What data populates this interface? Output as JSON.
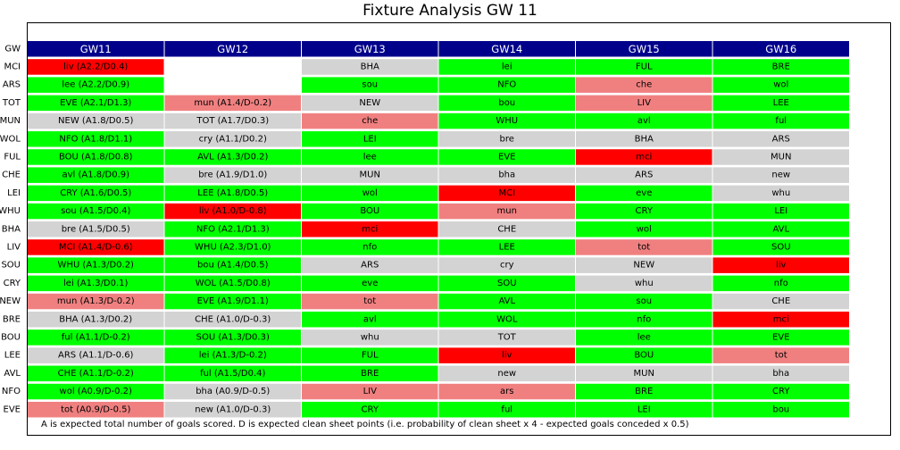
{
  "chart_data": {
    "type": "table",
    "title": "Fixture Analysis GW 11",
    "row_header_label": "GW",
    "columns": [
      "GW11",
      "GW12",
      "GW13",
      "GW14",
      "GW15",
      "GW16"
    ],
    "colors": {
      "header": "#00008b",
      "green": "#00ff00",
      "grey": "#d3d3d3",
      "pink": "#f08080",
      "red": "#ff0000",
      "empty": "#ffffff"
    },
    "rows": [
      {
        "team": "MCI",
        "cells": [
          [
            "liv (A2.2/D0.4)",
            "red"
          ],
          [
            "",
            "empty"
          ],
          [
            "BHA",
            "grey"
          ],
          [
            "lei",
            "green"
          ],
          [
            "FUL",
            "green"
          ],
          [
            "BRE",
            "green"
          ]
        ]
      },
      {
        "team": "ARS",
        "cells": [
          [
            "lee (A2.2/D0.9)",
            "green"
          ],
          [
            "",
            "empty"
          ],
          [
            "sou",
            "green"
          ],
          [
            "NFO",
            "green"
          ],
          [
            "che",
            "pink"
          ],
          [
            "wol",
            "green"
          ]
        ]
      },
      {
        "team": "TOT",
        "cells": [
          [
            "EVE (A2.1/D1.3)",
            "green"
          ],
          [
            "mun (A1.4/D-0.2)",
            "pink"
          ],
          [
            "NEW",
            "grey"
          ],
          [
            "bou",
            "green"
          ],
          [
            "LIV",
            "pink"
          ],
          [
            "LEE",
            "green"
          ]
        ]
      },
      {
        "team": "MUN",
        "cells": [
          [
            "NEW (A1.8/D0.5)",
            "grey"
          ],
          [
            "TOT (A1.7/D0.3)",
            "grey"
          ],
          [
            "che",
            "pink"
          ],
          [
            "WHU",
            "green"
          ],
          [
            "avl",
            "green"
          ],
          [
            "ful",
            "green"
          ]
        ]
      },
      {
        "team": "WOL",
        "cells": [
          [
            "NFO (A1.8/D1.1)",
            "green"
          ],
          [
            "cry (A1.1/D0.2)",
            "grey"
          ],
          [
            "LEI",
            "green"
          ],
          [
            "bre",
            "grey"
          ],
          [
            "BHA",
            "grey"
          ],
          [
            "ARS",
            "grey"
          ]
        ]
      },
      {
        "team": "FUL",
        "cells": [
          [
            "BOU (A1.8/D0.8)",
            "green"
          ],
          [
            "AVL (A1.3/D0.2)",
            "green"
          ],
          [
            "lee",
            "green"
          ],
          [
            "EVE",
            "green"
          ],
          [
            "mci",
            "red"
          ],
          [
            "MUN",
            "grey"
          ]
        ]
      },
      {
        "team": "CHE",
        "cells": [
          [
            "avl (A1.8/D0.9)",
            "green"
          ],
          [
            "bre (A1.9/D1.0)",
            "grey"
          ],
          [
            "MUN",
            "grey"
          ],
          [
            "bha",
            "grey"
          ],
          [
            "ARS",
            "grey"
          ],
          [
            "new",
            "grey"
          ]
        ]
      },
      {
        "team": "LEI",
        "cells": [
          [
            "CRY (A1.6/D0.5)",
            "green"
          ],
          [
            "LEE (A1.8/D0.5)",
            "green"
          ],
          [
            "wol",
            "green"
          ],
          [
            "MCI",
            "red"
          ],
          [
            "eve",
            "green"
          ],
          [
            "whu",
            "grey"
          ]
        ]
      },
      {
        "team": "WHU",
        "cells": [
          [
            "sou (A1.5/D0.4)",
            "green"
          ],
          [
            "liv (A1.0/D-0.8)",
            "red"
          ],
          [
            "BOU",
            "green"
          ],
          [
            "mun",
            "pink"
          ],
          [
            "CRY",
            "green"
          ],
          [
            "LEI",
            "green"
          ]
        ]
      },
      {
        "team": "BHA",
        "cells": [
          [
            "bre (A1.5/D0.5)",
            "grey"
          ],
          [
            "NFO (A2.1/D1.3)",
            "green"
          ],
          [
            "mci",
            "red"
          ],
          [
            "CHE",
            "grey"
          ],
          [
            "wol",
            "green"
          ],
          [
            "AVL",
            "green"
          ]
        ]
      },
      {
        "team": "LIV",
        "cells": [
          [
            "MCI (A1.4/D-0.6)",
            "red"
          ],
          [
            "WHU (A2.3/D1.0)",
            "green"
          ],
          [
            "nfo",
            "green"
          ],
          [
            "LEE",
            "green"
          ],
          [
            "tot",
            "pink"
          ],
          [
            "SOU",
            "green"
          ]
        ]
      },
      {
        "team": "SOU",
        "cells": [
          [
            "WHU (A1.3/D0.2)",
            "green"
          ],
          [
            "bou (A1.4/D0.5)",
            "green"
          ],
          [
            "ARS",
            "grey"
          ],
          [
            "cry",
            "grey"
          ],
          [
            "NEW",
            "grey"
          ],
          [
            "liv",
            "red"
          ]
        ]
      },
      {
        "team": "CRY",
        "cells": [
          [
            "lei (A1.3/D0.1)",
            "green"
          ],
          [
            "WOL (A1.5/D0.8)",
            "green"
          ],
          [
            "eve",
            "green"
          ],
          [
            "SOU",
            "green"
          ],
          [
            "whu",
            "grey"
          ],
          [
            "nfo",
            "green"
          ]
        ]
      },
      {
        "team": "NEW",
        "cells": [
          [
            "mun (A1.3/D-0.2)",
            "pink"
          ],
          [
            "EVE (A1.9/D1.1)",
            "green"
          ],
          [
            "tot",
            "pink"
          ],
          [
            "AVL",
            "green"
          ],
          [
            "sou",
            "green"
          ],
          [
            "CHE",
            "grey"
          ]
        ]
      },
      {
        "team": "BRE",
        "cells": [
          [
            "BHA (A1.3/D0.2)",
            "grey"
          ],
          [
            "CHE (A1.0/D-0.3)",
            "grey"
          ],
          [
            "avl",
            "green"
          ],
          [
            "WOL",
            "green"
          ],
          [
            "nfo",
            "green"
          ],
          [
            "mci",
            "red"
          ]
        ]
      },
      {
        "team": "BOU",
        "cells": [
          [
            "ful (A1.1/D-0.2)",
            "green"
          ],
          [
            "SOU (A1.3/D0.3)",
            "green"
          ],
          [
            "whu",
            "grey"
          ],
          [
            "TOT",
            "grey"
          ],
          [
            "lee",
            "green"
          ],
          [
            "EVE",
            "green"
          ]
        ]
      },
      {
        "team": "LEE",
        "cells": [
          [
            "ARS (A1.1/D-0.6)",
            "grey"
          ],
          [
            "lei (A1.3/D-0.2)",
            "green"
          ],
          [
            "FUL",
            "green"
          ],
          [
            "liv",
            "red"
          ],
          [
            "BOU",
            "green"
          ],
          [
            "tot",
            "pink"
          ]
        ]
      },
      {
        "team": "AVL",
        "cells": [
          [
            "CHE (A1.1/D-0.2)",
            "green"
          ],
          [
            "ful (A1.5/D0.4)",
            "green"
          ],
          [
            "BRE",
            "green"
          ],
          [
            "new",
            "grey"
          ],
          [
            "MUN",
            "grey"
          ],
          [
            "bha",
            "grey"
          ]
        ]
      },
      {
        "team": "NFO",
        "cells": [
          [
            "wol (A0.9/D-0.2)",
            "green"
          ],
          [
            "bha (A0.9/D-0.5)",
            "grey"
          ],
          [
            "LIV",
            "pink"
          ],
          [
            "ars",
            "pink"
          ],
          [
            "BRE",
            "green"
          ],
          [
            "CRY",
            "green"
          ]
        ]
      },
      {
        "team": "EVE",
        "cells": [
          [
            "tot (A0.9/D-0.5)",
            "pink"
          ],
          [
            "new (A1.0/D-0.3)",
            "grey"
          ],
          [
            "CRY",
            "green"
          ],
          [
            "ful",
            "green"
          ],
          [
            "LEI",
            "green"
          ],
          [
            "bou",
            "green"
          ]
        ]
      }
    ],
    "footnote": "A is expected total number of goals scored. D is expected clean sheet points (i.e. probability of clean sheet x 4 - expected goals conceded x 0.5)"
  }
}
